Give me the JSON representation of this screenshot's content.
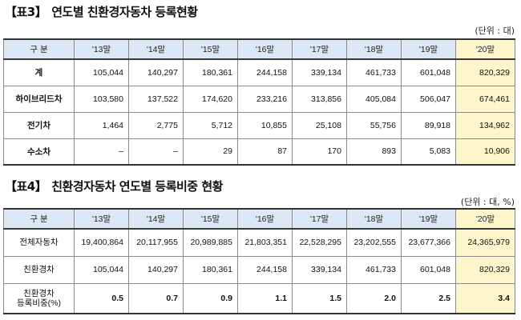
{
  "table1": {
    "tag": "【표3】",
    "title": "연도별 친환경자동차 등록현황",
    "unit": "(단위 : 대)",
    "header_label": "구 분",
    "years": [
      "'13말",
      "'14말",
      "'15말",
      "'16말",
      "'17말",
      "'18말",
      "'19말",
      "'20말"
    ],
    "rows": [
      {
        "label": "계",
        "values": [
          "105,044",
          "140,297",
          "180,361",
          "244,158",
          "339,134",
          "461,733",
          "601,048",
          "820,329"
        ]
      },
      {
        "label": "하이브리드차",
        "values": [
          "103,580",
          "137,522",
          "174,620",
          "233,216",
          "313,856",
          "405,084",
          "506,047",
          "674,461"
        ]
      },
      {
        "label": "전기차",
        "values": [
          "1,464",
          "2,775",
          "5,712",
          "10,855",
          "25,108",
          "55,756",
          "89,918",
          "134,962"
        ]
      },
      {
        "label": "수소차",
        "values": [
          "–",
          "–",
          "29",
          "87",
          "170",
          "893",
          "5,083",
          "10,906"
        ]
      }
    ]
  },
  "table2": {
    "tag": "【표4】",
    "title": "친환경자동차 연도별 등록비중 현황",
    "unit": "(단위 : 대, %)",
    "header_label": "구 분",
    "years": [
      "'13말",
      "'14말",
      "'15말",
      "'16말",
      "'17말",
      "'18말",
      "'19말",
      "'20말"
    ],
    "rows": [
      {
        "label": "전체자동차",
        "values": [
          "19,400,864",
          "20,117,955",
          "20,989,885",
          "21,803,351",
          "22,528,295",
          "23,202,555",
          "23,677,366",
          "24,365,979"
        ]
      },
      {
        "label": "친환경차",
        "values": [
          "105,044",
          "140,297",
          "180,361",
          "244,158",
          "339,134",
          "461,733",
          "601,048",
          "820,329"
        ]
      },
      {
        "label_line1": "친환경차",
        "label_line2": "등록비중(%)",
        "values": [
          "0.5",
          "0.7",
          "0.9",
          "1.1",
          "1.5",
          "2.0",
          "2.5",
          "3.4"
        ]
      }
    ]
  }
}
